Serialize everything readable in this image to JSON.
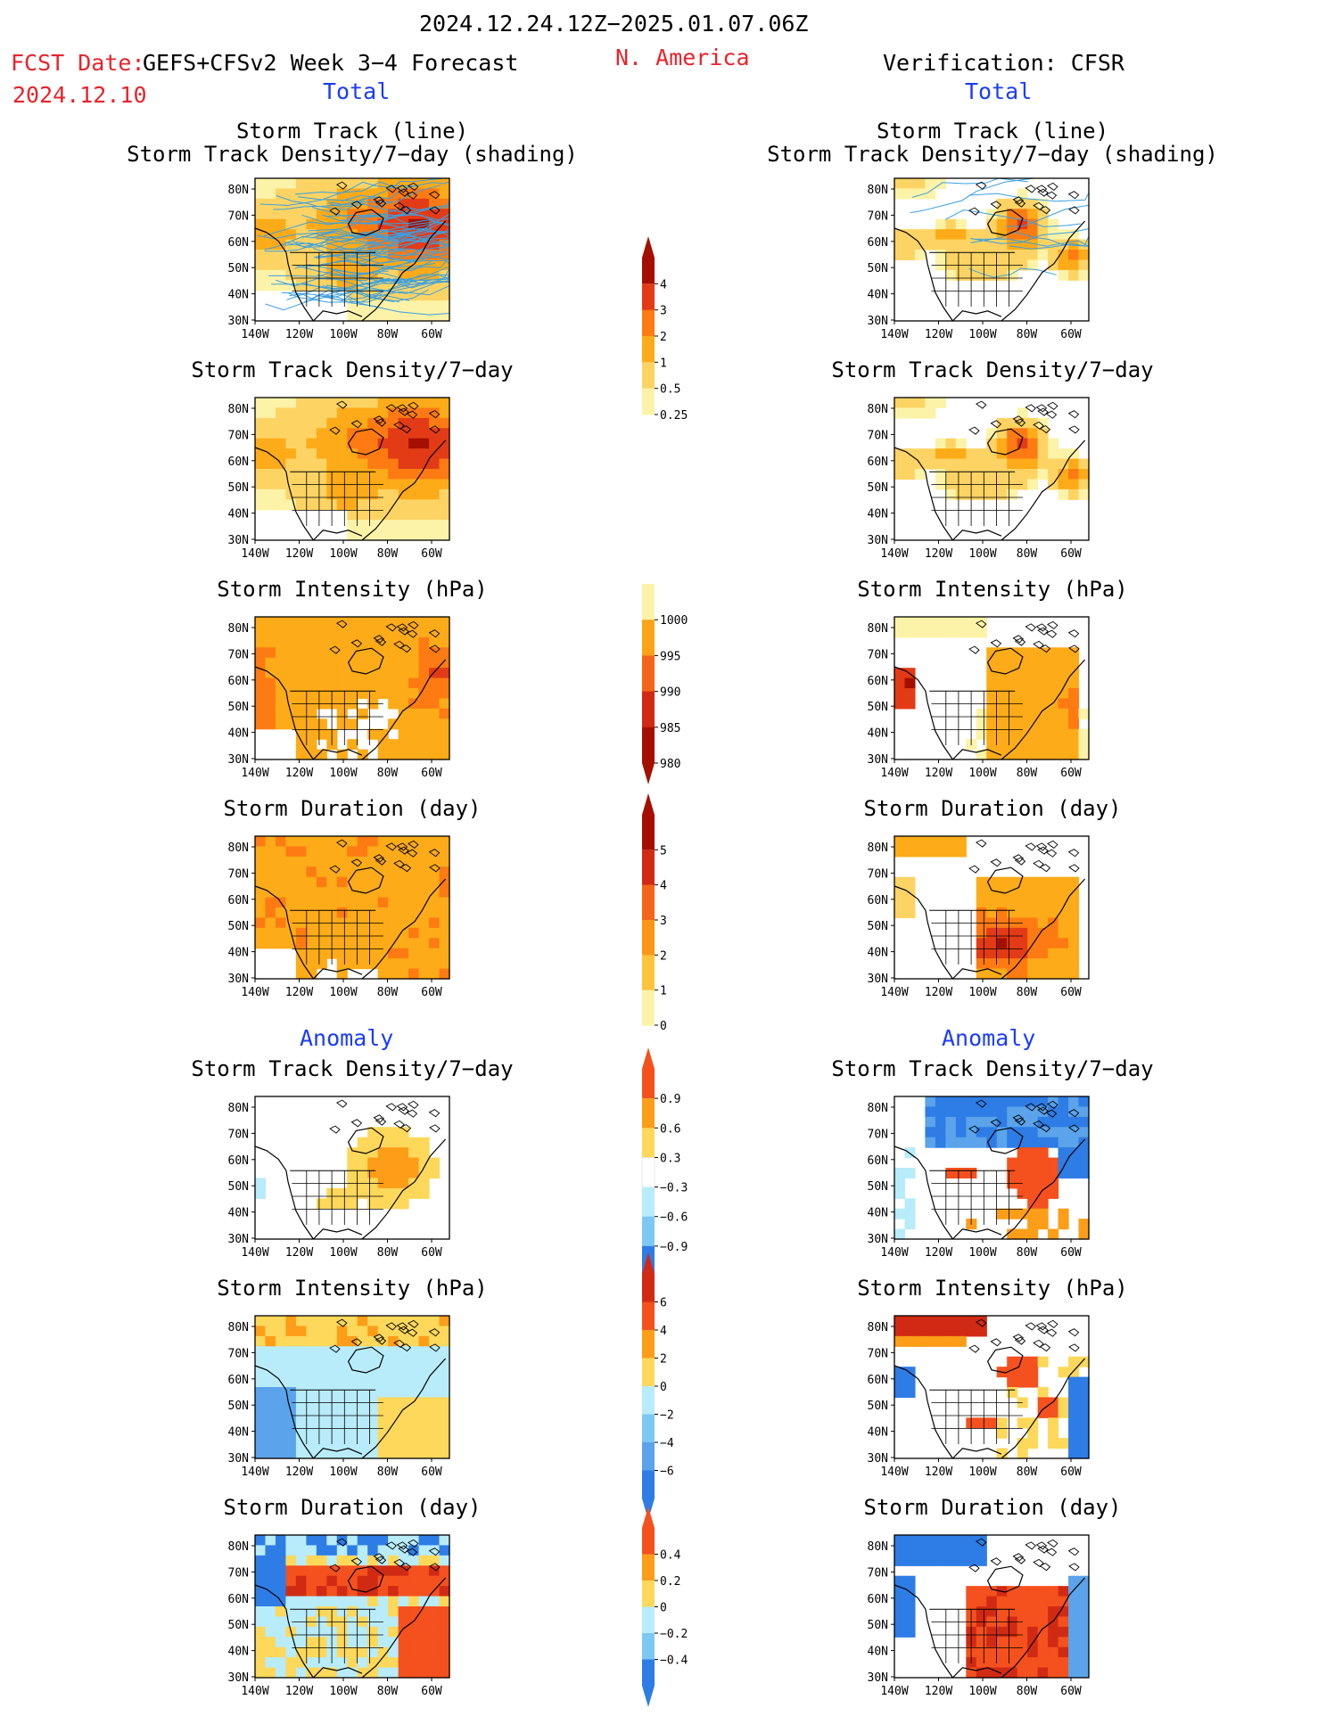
{
  "header": {
    "date_range": "2024.12.24.12Z−2025.01.07.06Z",
    "fcst_label": "FCST Date:",
    "fcst_date": "2024.12.10",
    "model": "GEFS+CFSv2 Week 3−4 Forecast",
    "region": "N. America",
    "verification": "Verification: CFSR",
    "left_section_total": "Total",
    "right_section_total": "Total",
    "left_section_anomaly": "Anomaly",
    "right_section_anomaly": "Anomaly"
  },
  "axes": {
    "lat_labels": [
      "80N",
      "70N",
      "60N",
      "50N",
      "40N",
      "30N"
    ],
    "lon_labels": [
      "140W",
      "120W",
      "100W",
      "80W",
      "60W"
    ]
  },
  "panels": {
    "forecast": [
      {
        "title_line1": "Storm Track (line)",
        "title_line2": "Storm Track Density/7−day (shading)",
        "field": "density_tracks",
        "kind": "total"
      },
      {
        "title_line1": "Storm Track Density/7−day",
        "title_line2": "",
        "field": "density",
        "kind": "total"
      },
      {
        "title_line1": "Storm Intensity (hPa)",
        "title_line2": "",
        "field": "intensity",
        "kind": "total"
      },
      {
        "title_line1": "Storm Duration (day)",
        "title_line2": "",
        "field": "duration",
        "kind": "total"
      },
      {
        "title_line1": "Storm Track Density/7−day",
        "title_line2": "",
        "field": "density_anom",
        "kind": "anomaly"
      },
      {
        "title_line1": "Storm Intensity (hPa)",
        "title_line2": "",
        "field": "intensity_anom",
        "kind": "anomaly"
      },
      {
        "title_line1": "Storm Duration (day)",
        "title_line2": "",
        "field": "duration_anom",
        "kind": "anomaly"
      }
    ],
    "verification": [
      {
        "title_line1": "Storm Track (line)",
        "title_line2": "Storm Track Density/7−day (shading)",
        "field": "density_tracks",
        "kind": "total"
      },
      {
        "title_line1": "Storm Track Density/7−day",
        "title_line2": "",
        "field": "density",
        "kind": "total"
      },
      {
        "title_line1": "Storm Intensity (hPa)",
        "title_line2": "",
        "field": "intensity",
        "kind": "total"
      },
      {
        "title_line1": "Storm Duration (day)",
        "title_line2": "",
        "field": "duration",
        "kind": "total"
      },
      {
        "title_line1": "Storm Track Density/7−day",
        "title_line2": "",
        "field": "density_anom",
        "kind": "anomaly"
      },
      {
        "title_line1": "Storm Intensity (hPa)",
        "title_line2": "",
        "field": "intensity_anom",
        "kind": "anomaly"
      },
      {
        "title_line1": "Storm Duration (day)",
        "title_line2": "",
        "field": "duration_anom",
        "kind": "anomaly"
      }
    ]
  },
  "colorbars": [
    {
      "name": "density",
      "labels": [
        "4",
        "3",
        "2",
        "1",
        "0.5",
        "0.25"
      ],
      "colors": [
        "#a50f00",
        "#e33b16",
        "#fd7b12",
        "#fdab18",
        "#fdd464",
        "#fdf3a8"
      ],
      "upper_arrow": true,
      "lower_arrow": false
    },
    {
      "name": "intensity",
      "labels": [
        "1000",
        "995",
        "990",
        "985",
        "980"
      ],
      "colors": [
        "#fdf3a8",
        "#fda318",
        "#f4651a",
        "#d12a14",
        "#a50f00"
      ],
      "upper_arrow": false,
      "lower_arrow": true
    },
    {
      "name": "duration",
      "labels": [
        "5",
        "4",
        "3",
        "2",
        "1",
        "0"
      ],
      "colors": [
        "#a50f00",
        "#d12a14",
        "#f4651a",
        "#fd9518",
        "#fdc43c",
        "#fdf3a8"
      ],
      "upper_arrow": true,
      "lower_arrow": false
    },
    {
      "name": "density_anomaly",
      "labels": [
        "0.9",
        "0.6",
        "0.3",
        "−0.3",
        "−0.6",
        "−0.9"
      ],
      "colors": [
        "#f4511e",
        "#fd9d18",
        "#fdd85a",
        "#ffffff",
        "#b8ecfa",
        "#7cc8f5",
        "#2e7ce6"
      ],
      "upper_arrow": true,
      "lower_arrow": true
    },
    {
      "name": "intensity_anomaly",
      "labels": [
        "6",
        "4",
        "2",
        "0",
        "−2",
        "−4",
        "−6"
      ],
      "colors": [
        "#d12a14",
        "#f4511e",
        "#fd9d18",
        "#fdd85a",
        "#b8ecfa",
        "#7cc8f5",
        "#5ba3ea",
        "#2e7ce6"
      ],
      "upper_arrow": true,
      "lower_arrow": true
    },
    {
      "name": "duration_anomaly",
      "labels": [
        "0.4",
        "0.2",
        "0",
        "−0.2",
        "−0.4"
      ],
      "colors": [
        "#f4511e",
        "#fd9d18",
        "#fdd85a",
        "#b8ecfa",
        "#7cc8f5",
        "#2e7ce6"
      ],
      "upper_arrow": true,
      "lower_arrow": true
    }
  ],
  "colors": {
    "title_red": "#e8232b",
    "section_blue": "#1a3cff",
    "track_line": "#3aa0e0"
  }
}
